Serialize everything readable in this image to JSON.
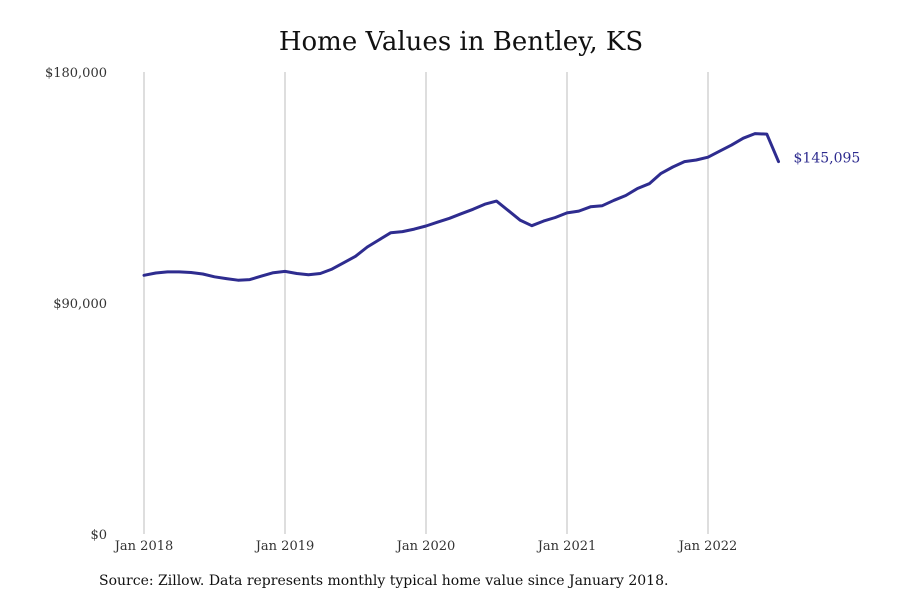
{
  "chart_data": {
    "type": "line",
    "title": "Home Values in Bentley, KS",
    "source_note": "Source: Zillow. Data represents monthly typical home value since January 2018.",
    "ylim": [
      0,
      180000
    ],
    "y_ticks": [
      {
        "value": 0,
        "label": "$0"
      },
      {
        "value": 90000,
        "label": "$90,000"
      },
      {
        "value": 180000,
        "label": "$180,000"
      }
    ],
    "x_ticks": [
      {
        "value": 0,
        "label": "Jan 2018"
      },
      {
        "value": 12,
        "label": "Jan 2019"
      },
      {
        "value": 24,
        "label": "Jan 2020"
      },
      {
        "value": 36,
        "label": "Jan 2021"
      },
      {
        "value": 48,
        "label": "Jan 2022"
      }
    ],
    "x_unit": "months since Jan 2018",
    "xlim": [
      0,
      60
    ],
    "grid": "vertical",
    "end_label": "$145,095",
    "color": "#2e2c8f",
    "series": [
      {
        "values": [
          100800,
          101700,
          102100,
          102100,
          101900,
          101300,
          100200,
          99500,
          98900,
          99100,
          100500,
          101800,
          102300,
          101500,
          101000,
          101500,
          103200,
          105700,
          108200,
          111800,
          114600,
          117400,
          117800,
          118800,
          120000,
          121500,
          123000,
          124800,
          126500,
          128500,
          129700,
          126000,
          122300,
          120100,
          121900,
          123300,
          125100,
          125800,
          127500,
          127900,
          130000,
          131900,
          134600,
          136500,
          140500,
          143000,
          145100,
          145700,
          146800,
          149200,
          151500,
          154200,
          156000,
          155800,
          145095
        ]
      }
    ]
  }
}
